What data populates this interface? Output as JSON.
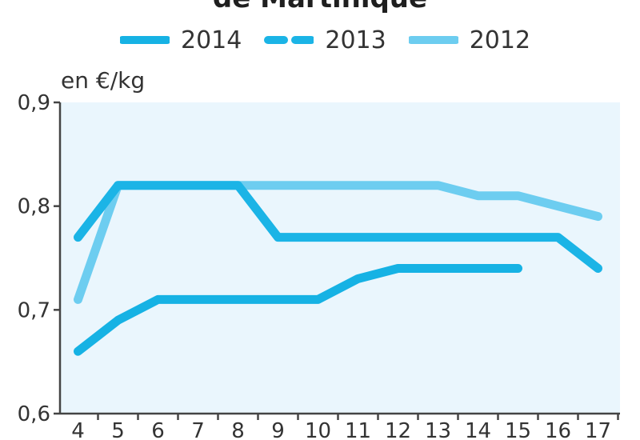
{
  "chart_data": {
    "type": "line",
    "title": "de Martinique",
    "ylabel": "en €/kg",
    "xlabel": "",
    "x": [
      4,
      5,
      6,
      7,
      8,
      9,
      10,
      11,
      12,
      13,
      14,
      15,
      16,
      17
    ],
    "ylim": [
      0.6,
      0.9
    ],
    "yticks": [
      0.6,
      0.7,
      0.8,
      0.9
    ],
    "ytick_labels": [
      "0,6",
      "0,7",
      "0,8",
      "0,9"
    ],
    "xtick_labels": [
      "4",
      "5",
      "6",
      "7",
      "8",
      "9",
      "10",
      "11",
      "12",
      "13",
      "14",
      "15",
      "16",
      "17"
    ],
    "grid": false,
    "legend_position": "top",
    "series": [
      {
        "name": "2014",
        "style": "solid",
        "color": "#16b2e4",
        "x": [
          4,
          5,
          6,
          7,
          8,
          9,
          10,
          11,
          12,
          13,
          14,
          15
        ],
        "values": [
          0.66,
          0.69,
          0.71,
          0.71,
          0.71,
          0.71,
          0.71,
          0.73,
          0.74,
          0.74,
          0.74,
          0.74
        ]
      },
      {
        "name": "2013",
        "style": "dashed",
        "color": "#1bb4e6",
        "x": [
          4,
          5,
          6,
          7,
          8,
          9,
          10,
          11,
          12,
          13,
          14,
          15,
          16,
          17
        ],
        "values": [
          0.77,
          0.82,
          0.82,
          0.82,
          0.82,
          0.77,
          0.77,
          0.77,
          0.77,
          0.77,
          0.77,
          0.77,
          0.77,
          0.74
        ]
      },
      {
        "name": "2012",
        "style": "solid",
        "color": "#6dcdf0",
        "x": [
          4,
          5,
          6,
          7,
          8,
          9,
          10,
          11,
          12,
          13,
          14,
          15,
          16,
          17
        ],
        "values": [
          0.71,
          0.82,
          0.82,
          0.82,
          0.82,
          0.82,
          0.82,
          0.82,
          0.82,
          0.82,
          0.81,
          0.81,
          0.8,
          0.79
        ]
      }
    ],
    "colors": {
      "plot_background": "#eaf6fd",
      "axis": "#444444"
    }
  }
}
